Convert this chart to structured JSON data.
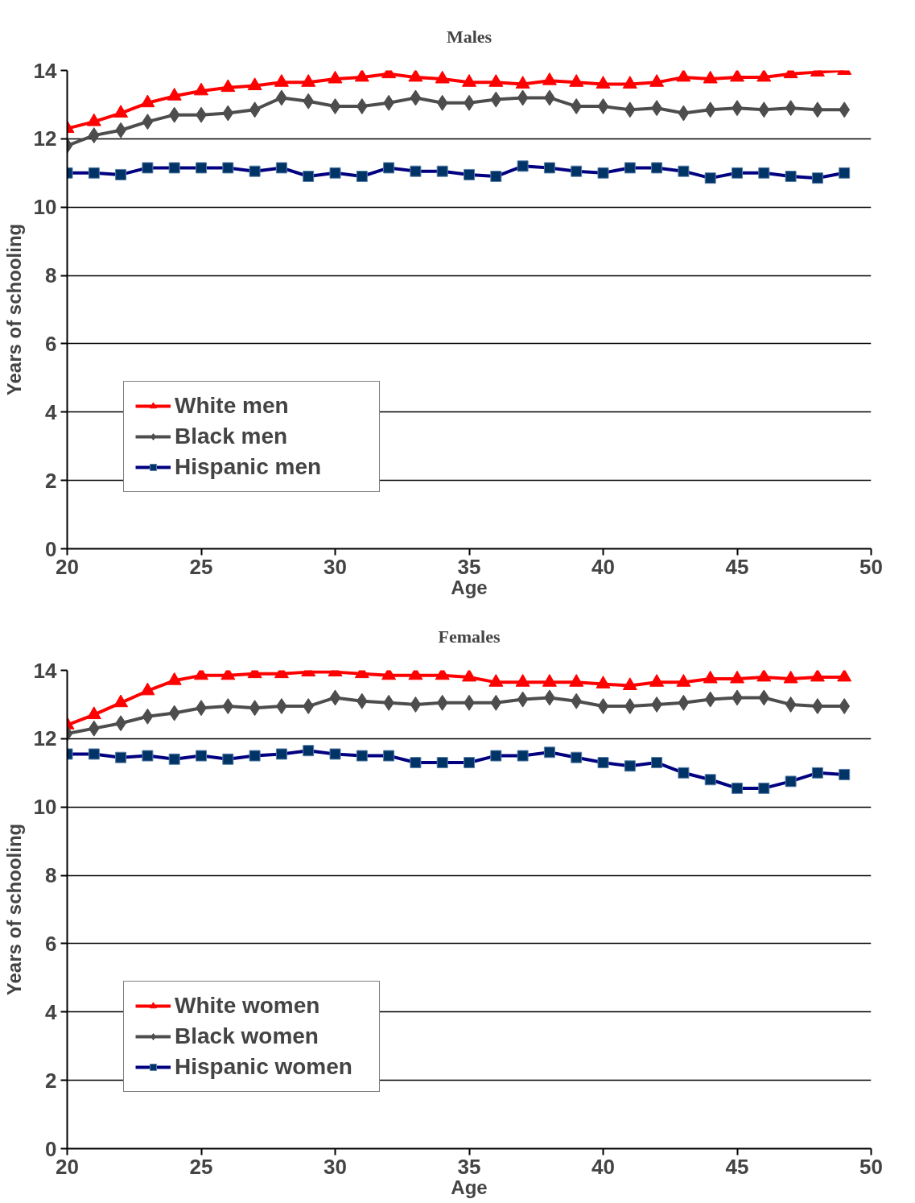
{
  "chart_data": [
    {
      "type": "line",
      "title": "Males",
      "xlabel": "Age",
      "ylabel": "Years of schooling",
      "x": [
        20,
        21,
        22,
        23,
        24,
        25,
        26,
        27,
        28,
        29,
        30,
        31,
        32,
        33,
        34,
        35,
        36,
        37,
        38,
        39,
        40,
        41,
        42,
        43,
        44,
        45,
        46,
        47,
        48,
        49
      ],
      "series": [
        {
          "name": "White men",
          "color": "#ff0000",
          "marker": "triangle",
          "values": [
            12.3,
            12.5,
            12.75,
            13.05,
            13.25,
            13.4,
            13.5,
            13.55,
            13.65,
            13.65,
            13.75,
            13.8,
            13.9,
            13.8,
            13.75,
            13.65,
            13.65,
            13.6,
            13.7,
            13.65,
            13.6,
            13.6,
            13.65,
            13.8,
            13.75,
            13.8,
            13.8,
            13.9,
            13.95,
            14.0
          ]
        },
        {
          "name": "Black men",
          "color": "#4d4d4d",
          "marker": "diamond",
          "values": [
            11.8,
            12.1,
            12.25,
            12.5,
            12.7,
            12.7,
            12.75,
            12.85,
            13.2,
            13.1,
            12.95,
            12.95,
            13.05,
            13.2,
            13.05,
            13.05,
            13.15,
            13.2,
            13.2,
            12.95,
            12.95,
            12.85,
            12.9,
            12.75,
            12.85,
            12.9,
            12.85,
            12.9,
            12.85,
            12.85
          ]
        },
        {
          "name": "Hispanic men",
          "color": "#000080",
          "marker": "square",
          "values": [
            11.0,
            11.0,
            10.95,
            11.15,
            11.15,
            11.15,
            11.15,
            11.05,
            11.15,
            10.9,
            11.0,
            10.9,
            11.15,
            11.05,
            11.05,
            10.95,
            10.9,
            11.2,
            11.15,
            11.05,
            11.0,
            11.15,
            11.15,
            11.05,
            10.85,
            11.0,
            11.0,
            10.9,
            10.85,
            11.0
          ]
        }
      ],
      "xlim": [
        20,
        50
      ],
      "xticks": [
        20,
        25,
        30,
        35,
        40,
        45,
        50
      ],
      "ylim": [
        0,
        14
      ],
      "yticks": [
        0,
        2,
        4,
        6,
        8,
        10,
        12,
        14
      ],
      "grid": "y",
      "legend": "bottom left",
      "line_style": "solid"
    },
    {
      "type": "line",
      "title": "Females",
      "xlabel": "Age",
      "ylabel": "Years of schooling",
      "x": [
        20,
        21,
        22,
        23,
        24,
        25,
        26,
        27,
        28,
        29,
        30,
        31,
        32,
        33,
        34,
        35,
        36,
        37,
        38,
        39,
        40,
        41,
        42,
        43,
        44,
        45,
        46,
        47,
        48,
        49
      ],
      "series": [
        {
          "name": "White women",
          "color": "#ff0000",
          "marker": "triangle",
          "values": [
            12.4,
            12.7,
            13.05,
            13.4,
            13.7,
            13.85,
            13.85,
            13.9,
            13.9,
            13.95,
            13.95,
            13.9,
            13.85,
            13.85,
            13.85,
            13.8,
            13.65,
            13.65,
            13.65,
            13.65,
            13.6,
            13.55,
            13.65,
            13.65,
            13.75,
            13.75,
            13.8,
            13.75,
            13.8,
            13.8
          ]
        },
        {
          "name": "Black women",
          "color": "#4d4d4d",
          "marker": "diamond",
          "values": [
            12.15,
            12.3,
            12.45,
            12.65,
            12.75,
            12.9,
            12.95,
            12.9,
            12.95,
            12.95,
            13.2,
            13.1,
            13.05,
            13.0,
            13.05,
            13.05,
            13.05,
            13.15,
            13.2,
            13.1,
            12.95,
            12.95,
            13.0,
            13.05,
            13.15,
            13.2,
            13.2,
            13.0,
            12.95,
            12.95
          ]
        },
        {
          "name": "Hispanic women",
          "color": "#000080",
          "marker": "square",
          "values": [
            11.55,
            11.55,
            11.45,
            11.5,
            11.4,
            11.5,
            11.4,
            11.5,
            11.55,
            11.65,
            11.55,
            11.5,
            11.5,
            11.3,
            11.3,
            11.3,
            11.5,
            11.5,
            11.6,
            11.45,
            11.3,
            11.2,
            11.3,
            11.0,
            10.8,
            10.55,
            10.55,
            10.75,
            11.0,
            10.95
          ]
        }
      ],
      "xlim": [
        20,
        50
      ],
      "xticks": [
        20,
        25,
        30,
        35,
        40,
        45,
        50
      ],
      "ylim": [
        0,
        14
      ],
      "yticks": [
        0,
        2,
        4,
        6,
        8,
        10,
        12,
        14
      ],
      "grid": "y",
      "legend": "bottom left",
      "line_style": "solid"
    }
  ]
}
